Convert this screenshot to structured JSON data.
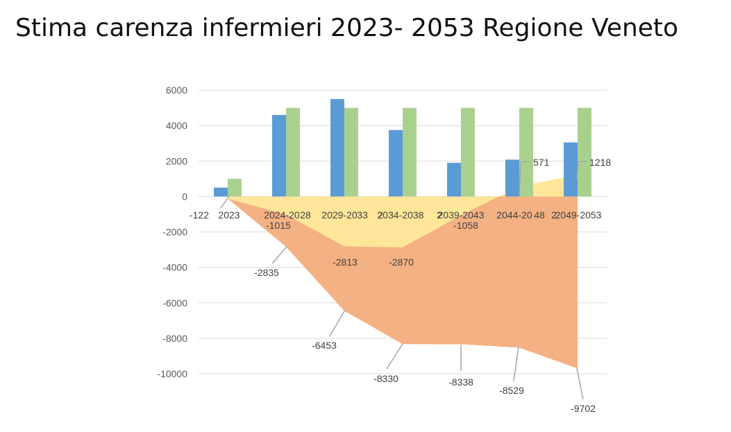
{
  "slide": {
    "title": "Stima carenza infermieri 2023- 2053 Regione Veneto"
  },
  "chart_data": {
    "type": "bar",
    "title": "Stima carenza infermieri 2023- 2053 Regione Veneto",
    "xlabel": "",
    "ylabel": "",
    "ylim": [
      -10000,
      6000
    ],
    "yticks": [
      6000,
      4000,
      2000,
      0,
      -2000,
      -4000,
      -6000,
      -8000,
      -10000
    ],
    "grid": true,
    "legend": "none",
    "colors": {
      "bar_blue": "#5B9BD5",
      "bar_green": "#A9D18E",
      "area_yellow": "#FFE699",
      "area_orange": "#F4B183",
      "grid": "#D9D9D9",
      "leader": "#A6A6A6"
    },
    "categories": [
      "2023",
      "2024-2028",
      "2029-2033",
      "2034-2038",
      "2039-2043",
      "2044-2048",
      "2049-2053"
    ],
    "category_labels_rendered": [
      "2023",
      "2024-202",
      "2029-203",
      "2034-2038",
      "2039-2043",
      "2044-204",
      "2049-2053"
    ],
    "category_labels_rendered_full": [
      "-122 2023",
      "2024-20 28",
      "2029-20 33 2",
      "2034-2038 2",
      "2039-2043",
      "2044-204 8 2",
      "2049-2053"
    ],
    "series": [
      {
        "type": "bar",
        "color": "#5B9BD5",
        "values": [
          500,
          4600,
          5500,
          3750,
          1900,
          2080,
          3050
        ]
      },
      {
        "type": "bar",
        "color": "#A9D18E",
        "values": [
          1000,
          5000,
          5000,
          5000,
          5000,
          5000,
          5000
        ]
      },
      {
        "type": "area",
        "color": "#FFE699",
        "values": [
          -122,
          -1015,
          -2813,
          -2870,
          -1058,
          571,
          1218
        ]
      },
      {
        "type": "area",
        "color": "#F4B183",
        "values": [
          -122,
          -2835,
          -6453,
          -8330,
          -8338,
          -8529,
          -9702
        ]
      }
    ]
  }
}
